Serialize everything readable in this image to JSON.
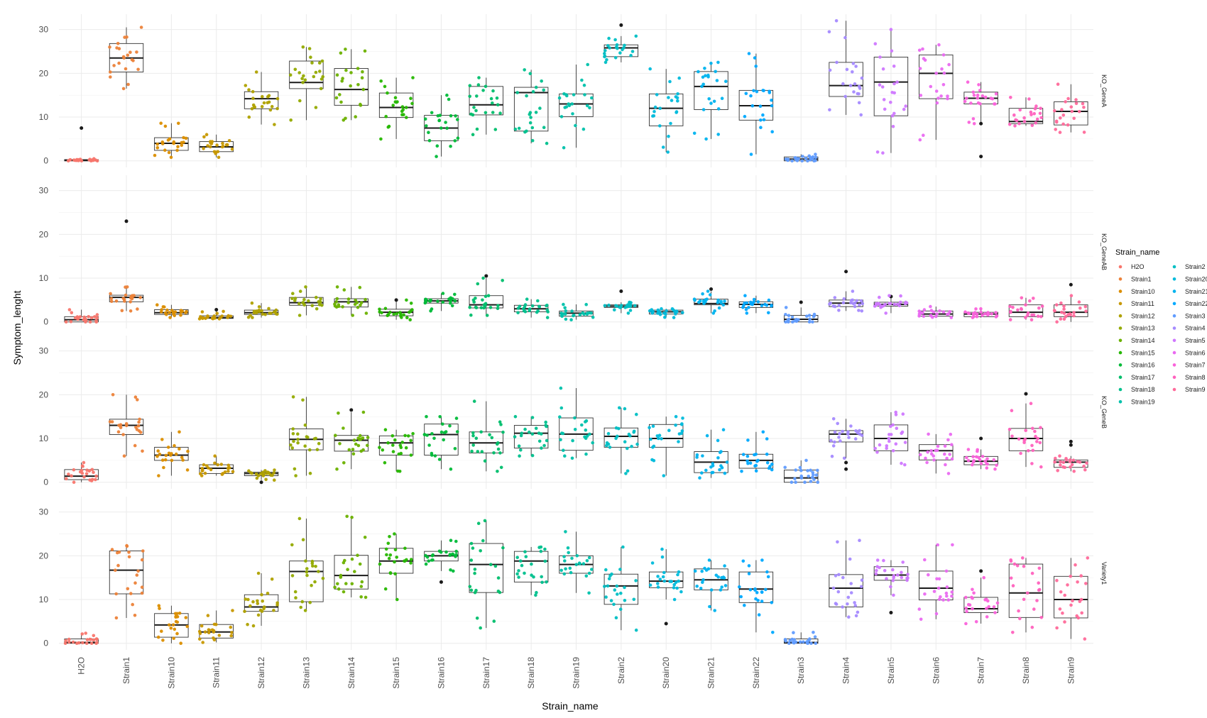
{
  "chart_data": {
    "type": "box",
    "xlabel": "Strain_name",
    "ylabel": "Symptom_lenght",
    "ylim": [
      -1.5,
      33.5
    ],
    "yticks": [
      0,
      10,
      20,
      30
    ],
    "grid": true,
    "legend": {
      "title": "Strain_name",
      "placement": "right",
      "entries": [
        "H2O",
        "Strain1",
        "Strain10",
        "Strain11",
        "Strain12",
        "Strain13",
        "Strain14",
        "Strain15",
        "Strain16",
        "Strain17",
        "Strain18",
        "Strain19",
        "Strain2",
        "Strain20",
        "Strain21",
        "Strain22",
        "Strain3",
        "Strain4",
        "Strain5",
        "Strain6",
        "Strain7",
        "Strain8",
        "Strain9"
      ]
    },
    "categories": [
      "H2O",
      "Strain1",
      "Strain10",
      "Strain11",
      "Strain12",
      "Strain13",
      "Strain14",
      "Strain15",
      "Strain16",
      "Strain17",
      "Strain18",
      "Strain19",
      "Strain2",
      "Strain20",
      "Strain21",
      "Strain22",
      "Strain3",
      "Strain4",
      "Strain5",
      "Strain6",
      "Strain7",
      "Strain8",
      "Strain9"
    ],
    "colors": [
      "#F8766D",
      "#EC8239",
      "#DB8E00",
      "#C79800",
      "#AFA100",
      "#93AA00",
      "#6BB100",
      "#25B700",
      "#00BA38",
      "#00BE6B",
      "#00C08D",
      "#00C1AB",
      "#00BFC4",
      "#00BADB",
      "#00B3EE",
      "#00A9FF",
      "#619CFF",
      "#A58AFF",
      "#CF78FF",
      "#EA6AF1",
      "#FA62DB",
      "#FF62BE",
      "#FF6A9A"
    ],
    "panels": [
      {
        "label": "KO_GeneA",
        "stats": [
          [
            0,
            0,
            0.1,
            0.3,
            0.5
          ],
          [
            16.5,
            20.3,
            23.5,
            26.8,
            30.5
          ],
          [
            0.8,
            2.4,
            4.0,
            5.3,
            8.6
          ],
          [
            0.8,
            2.1,
            3.2,
            4.4,
            6.0
          ],
          [
            8.3,
            11.9,
            14.2,
            15.8,
            20.3
          ],
          [
            9.3,
            16.5,
            17.9,
            22.8,
            26.0
          ],
          [
            9.3,
            12.7,
            16.3,
            21.1,
            25.5
          ],
          [
            5.0,
            9.9,
            12.2,
            15.5,
            19.0
          ],
          [
            1.0,
            4.6,
            7.5,
            10.4,
            15.0
          ],
          [
            6.0,
            10.5,
            12.8,
            17.0,
            19.0
          ],
          [
            4.0,
            6.8,
            15.6,
            16.8,
            20.8
          ],
          [
            3.0,
            10.1,
            13.0,
            15.3,
            22.0
          ],
          [
            22.5,
            23.8,
            25.8,
            26.5,
            28.5
          ],
          [
            2.0,
            8.0,
            12.0,
            15.3,
            21.0
          ],
          [
            5.0,
            11.7,
            17.0,
            20.4,
            22.5
          ],
          [
            1.5,
            9.3,
            12.6,
            16.1,
            24.5
          ],
          [
            0,
            0,
            0.4,
            0.9,
            1.5
          ],
          [
            10.5,
            14.7,
            17.2,
            22.5,
            32.0
          ],
          [
            1.8,
            10.3,
            18.0,
            23.7,
            30.0
          ],
          [
            4.8,
            14.2,
            20.0,
            24.2,
            26.5
          ],
          [
            8.5,
            13.0,
            14.3,
            15.7,
            18.0
          ],
          [
            8.0,
            8.5,
            9.0,
            12.0,
            14.5
          ],
          [
            6.5,
            8.2,
            11.3,
            13.5,
            17.5
          ]
        ],
        "outliers": [
          [
            7.5
          ],
          [],
          [],
          [],
          [],
          [],
          [],
          [],
          [],
          [],
          [],
          [],
          [
            31.0
          ],
          [],
          [],
          [],
          [],
          [],
          [],
          [],
          [
            1.0,
            8.5
          ],
          [],
          []
        ]
      },
      {
        "label": "KO_GeneAB",
        "stats": [
          [
            0,
            0,
            0.5,
            1.2,
            2.8
          ],
          [
            2.5,
            4.6,
            5.6,
            6.1,
            8.0
          ],
          [
            1.0,
            1.7,
            2.1,
            2.8,
            3.9
          ],
          [
            0.7,
            0.8,
            1.0,
            1.4,
            2.4
          ],
          [
            1.0,
            1.7,
            2.1,
            2.7,
            4.3
          ],
          [
            1.5,
            3.8,
            4.4,
            5.6,
            8.0
          ],
          [
            1.5,
            3.4,
            4.6,
            5.3,
            8.0
          ],
          [
            0.5,
            1.4,
            2.2,
            2.9,
            5.0
          ],
          [
            2.5,
            4.3,
            4.8,
            5.3,
            6.5
          ],
          [
            1.5,
            3.2,
            3.9,
            6.0,
            10.0
          ],
          [
            1.0,
            2.3,
            3.0,
            3.8,
            5.2
          ],
          [
            0.5,
            1.3,
            2.0,
            2.5,
            4.0
          ],
          [
            2.0,
            3.3,
            3.6,
            3.9,
            4.5
          ],
          [
            1.0,
            1.8,
            2.3,
            2.7,
            3.0
          ],
          [
            2.0,
            3.9,
            4.2,
            5.2,
            7.0
          ],
          [
            2.0,
            3.3,
            4.0,
            4.6,
            6.0
          ],
          [
            0,
            0,
            0.6,
            1.5,
            3.3
          ],
          [
            2.5,
            3.5,
            4.3,
            5.0,
            7.0
          ],
          [
            2.0,
            3.6,
            4.0,
            4.5,
            6.0
          ],
          [
            1.0,
            1.3,
            1.8,
            2.5,
            3.5
          ],
          [
            1.0,
            1.2,
            1.8,
            2.2,
            3.0
          ],
          [
            0.5,
            1.2,
            2.2,
            3.9,
            5.5
          ],
          [
            0,
            1.2,
            2.2,
            3.9,
            6.0
          ]
        ],
        "outliers": [
          [],
          [
            23.0
          ],
          [],
          [
            2.8
          ],
          [],
          [],
          [],
          [
            5.0
          ],
          [],
          [
            10.5
          ],
          [],
          [],
          [
            7.0
          ],
          [],
          [
            7.5
          ],
          [],
          [
            4.5
          ],
          [
            11.5
          ],
          [
            5.8
          ],
          [],
          [],
          [],
          [
            8.5
          ]
        ]
      },
      {
        "label": "KO_GeneB",
        "stats": [
          [
            0,
            0.6,
            1.4,
            2.9,
            4.5
          ],
          [
            6.0,
            10.9,
            13.0,
            14.4,
            20.0
          ],
          [
            1.5,
            5.0,
            6.2,
            8.0,
            11.5
          ],
          [
            1.5,
            2.0,
            3.2,
            4.0,
            6.0
          ],
          [
            0.5,
            1.5,
            2.0,
            2.3,
            2.8
          ],
          [
            1.5,
            7.4,
            9.8,
            12.2,
            19.5
          ],
          [
            3.0,
            7.1,
            9.6,
            10.7,
            16.0
          ],
          [
            2.5,
            6.2,
            9.0,
            10.6,
            12.0
          ],
          [
            3.0,
            6.2,
            10.9,
            13.3,
            15.0
          ],
          [
            2.5,
            6.7,
            9.0,
            11.5,
            18.5
          ],
          [
            6.0,
            7.8,
            11.2,
            13.0,
            15.0
          ],
          [
            5.5,
            7.3,
            11.0,
            14.7,
            21.5
          ],
          [
            2.0,
            8.0,
            10.5,
            12.4,
            17.0
          ],
          [
            1.5,
            8.0,
            10.0,
            13.2,
            15.0
          ],
          [
            1.0,
            2.2,
            4.6,
            7.0,
            12.0
          ],
          [
            2.5,
            3.2,
            5.0,
            6.4,
            11.5
          ],
          [
            0,
            0,
            1.0,
            2.8,
            5.0
          ],
          [
            5.5,
            9.2,
            11.0,
            11.8,
            14.5
          ],
          [
            4.0,
            7.2,
            10.0,
            13.1,
            16.0
          ],
          [
            2.0,
            5.1,
            7.2,
            8.6,
            11.0
          ],
          [
            3.0,
            4.0,
            4.8,
            5.9,
            7.5
          ],
          [
            3.5,
            7.2,
            10.0,
            12.3,
            18.0
          ],
          [
            2.5,
            3.4,
            4.6,
            5.1,
            6.0
          ]
        ],
        "outliers": [
          [],
          [],
          [],
          [],
          [
            0
          ],
          [],
          [
            16.5
          ],
          [],
          [],
          [],
          [],
          [],
          [],
          [],
          [],
          [],
          [],
          [
            3.0,
            4.5
          ],
          [],
          [],
          [
            10.0
          ],
          [
            20.2
          ],
          [
            8.5,
            9.3
          ]
        ]
      },
      {
        "label": "Variety1",
        "stats": [
          [
            0,
            0,
            0.2,
            1.0,
            2.3
          ],
          [
            5.8,
            11.3,
            16.7,
            21.1,
            22.3
          ],
          [
            0,
            1.4,
            4.2,
            6.8,
            8.6
          ],
          [
            0.2,
            1.2,
            2.6,
            4.3,
            7.5
          ],
          [
            4.0,
            7.3,
            8.3,
            11.1,
            16.0
          ],
          [
            7.5,
            9.5,
            16.4,
            18.8,
            28.5
          ],
          [
            10.5,
            12.4,
            15.5,
            20.1,
            29.0
          ],
          [
            10.0,
            16.0,
            18.8,
            21.7,
            25.0
          ],
          [
            16.5,
            18.8,
            20.0,
            21.0,
            23.5
          ],
          [
            3.5,
            11.6,
            18.0,
            22.8,
            28.0
          ],
          [
            11.0,
            14.0,
            18.8,
            21.0,
            22.0
          ],
          [
            11.5,
            16.0,
            18.0,
            20.0,
            25.5
          ],
          [
            3.0,
            8.9,
            13.1,
            15.8,
            22.0
          ],
          [
            10.0,
            12.7,
            14.2,
            16.3,
            21.5
          ],
          [
            7.5,
            12.2,
            14.5,
            17.0,
            19.0
          ],
          [
            2.5,
            9.3,
            12.4,
            16.3,
            19.0
          ],
          [
            0,
            0,
            0.2,
            1.0,
            2.5
          ],
          [
            6.0,
            8.3,
            12.6,
            15.7,
            23.5
          ],
          [
            11.0,
            14.4,
            15.6,
            17.5,
            19.0
          ],
          [
            5.5,
            9.9,
            12.6,
            16.5,
            22.5
          ],
          [
            4.5,
            7.0,
            7.9,
            10.5,
            15.0
          ],
          [
            2.5,
            5.9,
            11.5,
            18.1,
            19.5
          ],
          [
            1.0,
            5.8,
            10.0,
            15.3,
            19.5
          ]
        ],
        "outliers": [
          [],
          [],
          [],
          [],
          [],
          [],
          [],
          [],
          [
            14.0
          ],
          [],
          [],
          [],
          [],
          [
            4.5
          ],
          [],
          [],
          [],
          [],
          [
            7.0
          ],
          [],
          [
            16.5
          ],
          [],
          []
        ]
      }
    ]
  }
}
